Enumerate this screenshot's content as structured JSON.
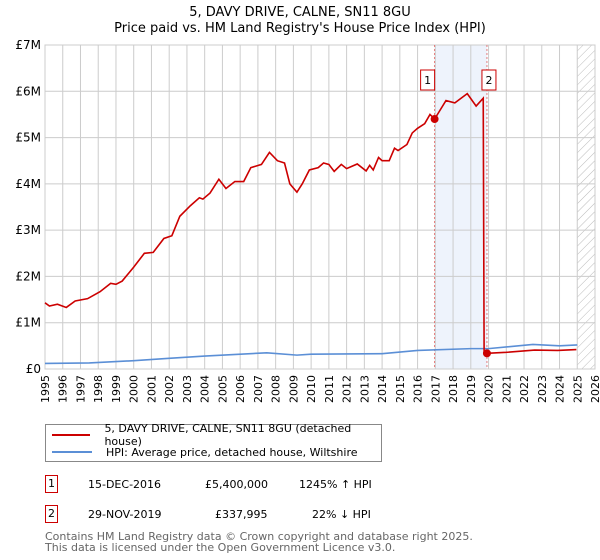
{
  "title": "5, DAVY DRIVE, CALNE, SN11 8GU",
  "subtitle": "Price paid vs. HM Land Registry's House Price Index (HPI)",
  "chart_data": {
    "type": "line",
    "title": "5, DAVY DRIVE, CALNE, SN11 8GU",
    "subtitle": "Price paid vs. HM Land Registry's House Price Index (HPI)",
    "xlim": [
      1995,
      2026
    ],
    "ylim": [
      0,
      7000000
    ],
    "x_ticks": [
      "1995",
      "1996",
      "1997",
      "1998",
      "1999",
      "2000",
      "2001",
      "2002",
      "2003",
      "2004",
      "2005",
      "2006",
      "2007",
      "2008",
      "2009",
      "2010",
      "2011",
      "2012",
      "2013",
      "2014",
      "2015",
      "2016",
      "2017",
      "2018",
      "2019",
      "2020",
      "2021",
      "2022",
      "2023",
      "2024",
      "2025",
      "2026"
    ],
    "y_ticks": [
      {
        "v": 0,
        "label": "£0"
      },
      {
        "v": 1000000,
        "label": "£1M"
      },
      {
        "v": 2000000,
        "label": "£2M"
      },
      {
        "v": 3000000,
        "label": "£3M"
      },
      {
        "v": 4000000,
        "label": "£4M"
      },
      {
        "v": 5000000,
        "label": "£5M"
      },
      {
        "v": 6000000,
        "label": "£6M"
      },
      {
        "v": 7000000,
        "label": "£7M"
      }
    ],
    "grid": true,
    "series": [
      {
        "name": "5, DAVY DRIVE, CALNE, SN11 8GU (detached house)",
        "color": "#cc0000",
        "points": [
          [
            1995,
            1.43
          ],
          [
            1995.25,
            1.36
          ],
          [
            1995.7,
            1.4
          ],
          [
            1996.2,
            1.33
          ],
          [
            1996.7,
            1.47
          ],
          [
            1997.4,
            1.52
          ],
          [
            1998.1,
            1.67
          ],
          [
            1998.7,
            1.85
          ],
          [
            1999,
            1.83
          ],
          [
            1999.35,
            1.9
          ],
          [
            2000,
            2.2
          ],
          [
            2000.6,
            2.5
          ],
          [
            2001.1,
            2.52
          ],
          [
            2001.7,
            2.82
          ],
          [
            2002.15,
            2.88
          ],
          [
            2002.6,
            3.3
          ],
          [
            2003.2,
            3.53
          ],
          [
            2003.7,
            3.7
          ],
          [
            2003.9,
            3.67
          ],
          [
            2004.3,
            3.8
          ],
          [
            2004.8,
            4.1
          ],
          [
            2005.2,
            3.9
          ],
          [
            2005.7,
            4.05
          ],
          [
            2006.2,
            4.05
          ],
          [
            2006.6,
            4.35
          ],
          [
            2007.2,
            4.42
          ],
          [
            2007.65,
            4.68
          ],
          [
            2008.1,
            4.5
          ],
          [
            2008.5,
            4.45
          ],
          [
            2008.8,
            4.0
          ],
          [
            2009.2,
            3.82
          ],
          [
            2009.5,
            4.0
          ],
          [
            2009.9,
            4.3
          ],
          [
            2010.4,
            4.35
          ],
          [
            2010.7,
            4.45
          ],
          [
            2011,
            4.42
          ],
          [
            2011.3,
            4.27
          ],
          [
            2011.7,
            4.42
          ],
          [
            2012,
            4.33
          ],
          [
            2012.6,
            4.43
          ],
          [
            2013.1,
            4.28
          ],
          [
            2013.3,
            4.4
          ],
          [
            2013.5,
            4.3
          ],
          [
            2013.8,
            4.57
          ],
          [
            2014,
            4.5
          ],
          [
            2014.4,
            4.5
          ],
          [
            2014.7,
            4.77
          ],
          [
            2014.9,
            4.72
          ],
          [
            2015.4,
            4.85
          ],
          [
            2015.7,
            5.1
          ],
          [
            2016,
            5.2
          ],
          [
            2016.4,
            5.3
          ],
          [
            2016.7,
            5.5
          ],
          [
            2016.96,
            5.4
          ],
          [
            2017.2,
            5.55
          ],
          [
            2017.6,
            5.8
          ],
          [
            2018.1,
            5.75
          ],
          [
            2018.8,
            5.95
          ],
          [
            2019.3,
            5.68
          ],
          [
            2019.7,
            5.85
          ],
          [
            2019.75,
            0.34
          ],
          [
            2019.91,
            0.338
          ],
          [
            2021,
            0.36
          ],
          [
            2022.6,
            0.41
          ],
          [
            2023.9,
            0.4
          ],
          [
            2024.95,
            0.42
          ]
        ]
      },
      {
        "name": "HPI: Average price, detached house, Wiltshire",
        "color": "#5b8fd6",
        "points": [
          [
            1995,
            0.12
          ],
          [
            1997.5,
            0.13
          ],
          [
            2000,
            0.18
          ],
          [
            2002,
            0.23
          ],
          [
            2004,
            0.28
          ],
          [
            2007.5,
            0.35
          ],
          [
            2009.2,
            0.3
          ],
          [
            2010,
            0.32
          ],
          [
            2014,
            0.33
          ],
          [
            2016,
            0.4
          ],
          [
            2019,
            0.44
          ],
          [
            2020,
            0.44
          ],
          [
            2022.5,
            0.53
          ],
          [
            2024,
            0.5
          ],
          [
            2025,
            0.52
          ]
        ]
      }
    ],
    "y_unit_multiplier": 1000000,
    "sales": [
      {
        "label": "1",
        "x": 2016.96,
        "y": 5400000
      },
      {
        "label": "2",
        "x": 2019.91,
        "y": 337995
      }
    ],
    "shaded_range": [
      2016.96,
      2019.91
    ],
    "hatched_from": 2025
  },
  "legend": {
    "items": [
      "5, DAVY DRIVE, CALNE, SN11 8GU (detached house)",
      "HPI: Average price, detached house, Wiltshire"
    ]
  },
  "transactions": [
    {
      "num": "1",
      "date": "15-DEC-2016",
      "price": "£5,400,000",
      "hpi": "1245% ↑ HPI"
    },
    {
      "num": "2",
      "date": "29-NOV-2019",
      "price": "£337,995",
      "hpi": "22% ↓ HPI"
    }
  ],
  "footer": [
    "Contains HM Land Registry data © Crown copyright and database right 2025.",
    "This data is licensed under the Open Government Licence v3.0."
  ]
}
